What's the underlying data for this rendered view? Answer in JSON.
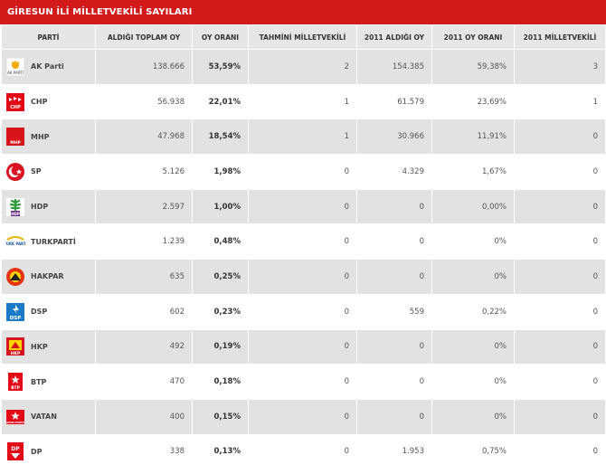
{
  "title": "GİRESUN İLİ MİLLETVEKİLİ SAYILARI",
  "headers": [
    "PARTİ",
    "ALDIĞI TOPLAM OY",
    "OY ORANI",
    "TAHMİNİ MİLLETVEKİLİ",
    "2011 ALDIĞI OY",
    "2011 OY ORANI",
    "2011 MİLLETVEKİLİ"
  ],
  "rows": [
    {
      "party": "AK Parti",
      "logo": "akparti-logo",
      "logo_text": "AK PARTİ",
      "votes": "138.666",
      "rate": "53,59%",
      "seats": "2",
      "votes2011": "154.385",
      "rate2011": "59,38%",
      "seats2011": "3"
    },
    {
      "party": "CHP",
      "logo": "chp-logo",
      "logo_text": "CHP",
      "votes": "56.938",
      "rate": "22,01%",
      "seats": "1",
      "votes2011": "61.579",
      "rate2011": "23,69%",
      "seats2011": "1"
    },
    {
      "party": "MHP",
      "logo": "mhp-logo",
      "logo_text": "MHP",
      "votes": "47.968",
      "rate": "18,54%",
      "seats": "1",
      "votes2011": "30.966",
      "rate2011": "11,91%",
      "seats2011": "0"
    },
    {
      "party": "SP",
      "logo": "sp-logo",
      "logo_text": "",
      "votes": "5.126",
      "rate": "1,98%",
      "seats": "0",
      "votes2011": "4.329",
      "rate2011": "1,67%",
      "seats2011": "0"
    },
    {
      "party": "HDP",
      "logo": "hdp-logo",
      "logo_text": "HDP",
      "votes": "2.597",
      "rate": "1,00%",
      "seats": "0",
      "votes2011": "0",
      "rate2011": "0,00%",
      "seats2011": "0"
    },
    {
      "party": "TURKPARTİ",
      "logo": "turkparti-logo",
      "logo_text": "TURK PARTİ",
      "votes": "1.239",
      "rate": "0,48%",
      "seats": "0",
      "votes2011": "0",
      "rate2011": "0%",
      "seats2011": "0"
    },
    {
      "party": "HAKPAR",
      "logo": "hakpar-logo",
      "logo_text": "",
      "votes": "635",
      "rate": "0,25%",
      "seats": "0",
      "votes2011": "0",
      "rate2011": "0%",
      "seats2011": "0"
    },
    {
      "party": "DSP",
      "logo": "dsp-logo",
      "logo_text": "DSP",
      "votes": "602",
      "rate": "0,23%",
      "seats": "0",
      "votes2011": "559",
      "rate2011": "0,22%",
      "seats2011": "0"
    },
    {
      "party": "HKP",
      "logo": "hkp-logo",
      "logo_text": "HKP",
      "votes": "492",
      "rate": "0,19%",
      "seats": "0",
      "votes2011": "0",
      "rate2011": "0%",
      "seats2011": "0"
    },
    {
      "party": "BTP",
      "logo": "btp-logo",
      "logo_text": "BTP",
      "votes": "470",
      "rate": "0,18%",
      "seats": "0",
      "votes2011": "0",
      "rate2011": "0%",
      "seats2011": "0"
    },
    {
      "party": "VATAN",
      "logo": "vatan-logo",
      "logo_text": "VATAN PARTİSİ",
      "votes": "400",
      "rate": "0,15%",
      "seats": "0",
      "votes2011": "0",
      "rate2011": "0%",
      "seats2011": "0"
    },
    {
      "party": "DP",
      "logo": "dp-logo",
      "logo_text": "DP",
      "votes": "338",
      "rate": "0,13%",
      "seats": "0",
      "votes2011": "1.953",
      "rate2011": "0,75%",
      "seats2011": "0"
    }
  ],
  "colors": {
    "title_bg": "#d31a1a",
    "header_bg": "#e6e6e6",
    "odd_row": "#e2e2e2",
    "even_row": "#ffffff"
  }
}
